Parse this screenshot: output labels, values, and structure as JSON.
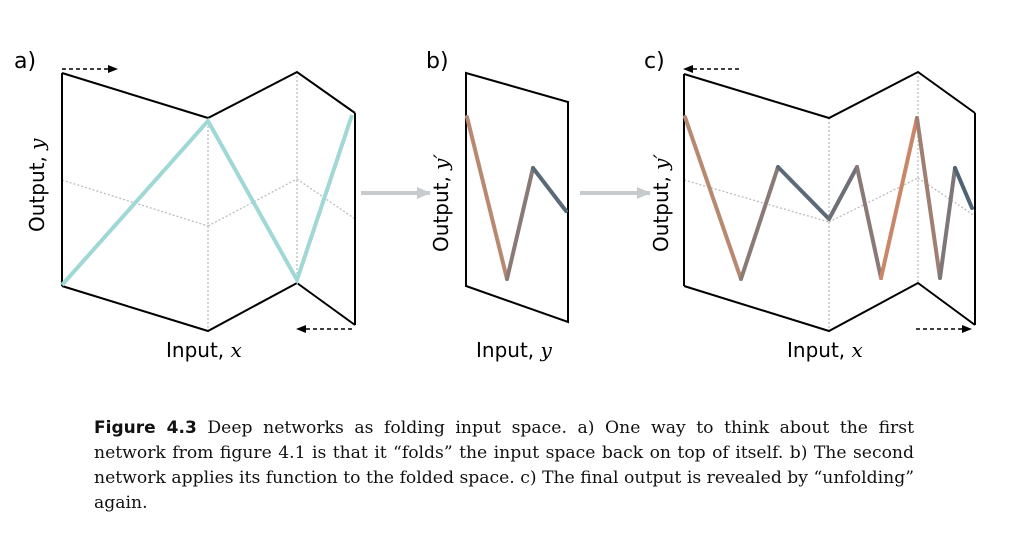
{
  "panels": {
    "a": {
      "label": "a)",
      "y_text": "Output, ",
      "y_var": "y",
      "x_text": "Input, ",
      "x_var": "x"
    },
    "b": {
      "label": "b)",
      "y_text": "Output, ",
      "y_var": "y′",
      "x_text": "Input, ",
      "x_var": "y"
    },
    "c": {
      "label": "c)",
      "y_text": "Output, ",
      "y_var": "y′",
      "x_text": "Input, ",
      "x_var": "x"
    }
  },
  "colors": {
    "cyan": "#9fd8d4",
    "orange": "#c98668",
    "taupe": "#8a7a76",
    "slate": "#4f6375",
    "arrow_gray": "#c8cbce",
    "fold_line": "#000000",
    "dotted": "#bdbdbd"
  },
  "caption": {
    "figure_label": "Figure 4.3",
    "text": "Deep networks as folding input space. a) One way to think about the first network from figure 4.1 is that it “folds” the input space back on top of itself. b) The second network applies its function to the folded space. c) The final output is revealed by “unfolding” again."
  }
}
